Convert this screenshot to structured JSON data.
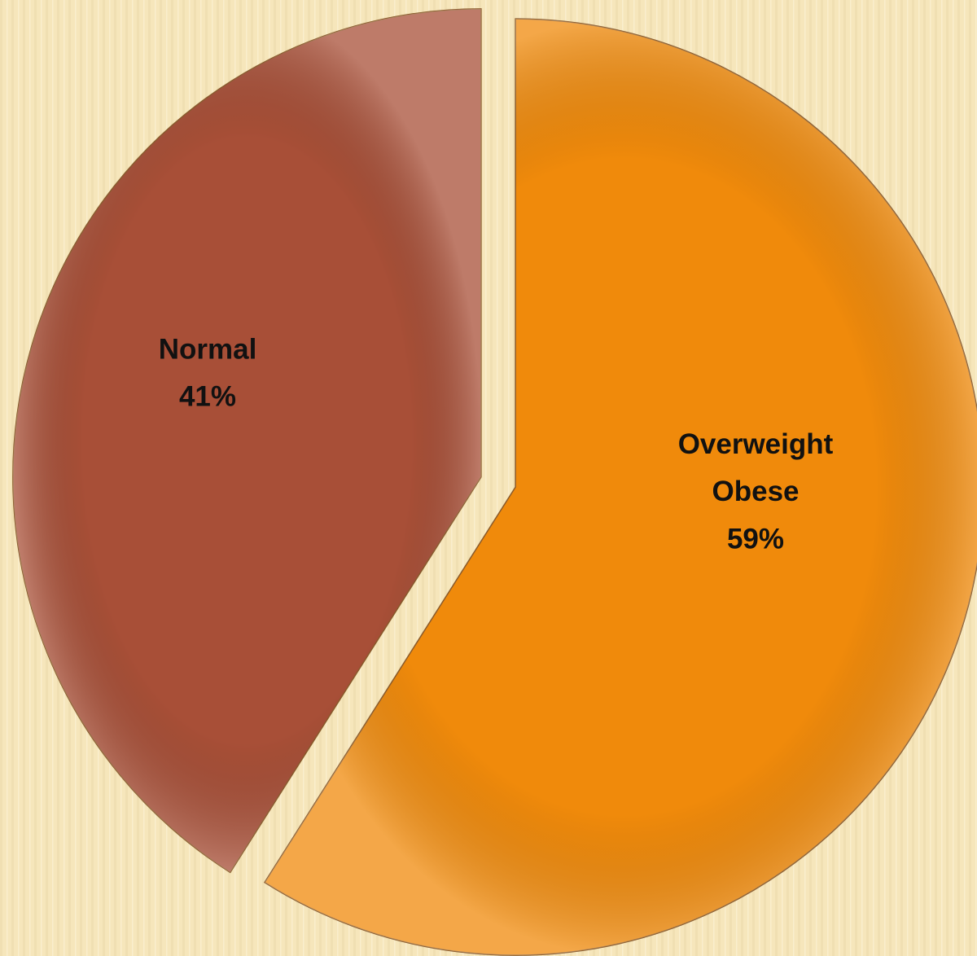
{
  "chart_data": {
    "type": "pie",
    "categories": [
      "Normal",
      "Overweight Obese"
    ],
    "values": [
      41,
      59
    ],
    "value_labels": [
      "41%",
      "59%"
    ],
    "colors": [
      "#a84f37",
      "#f08a0b"
    ]
  }
}
